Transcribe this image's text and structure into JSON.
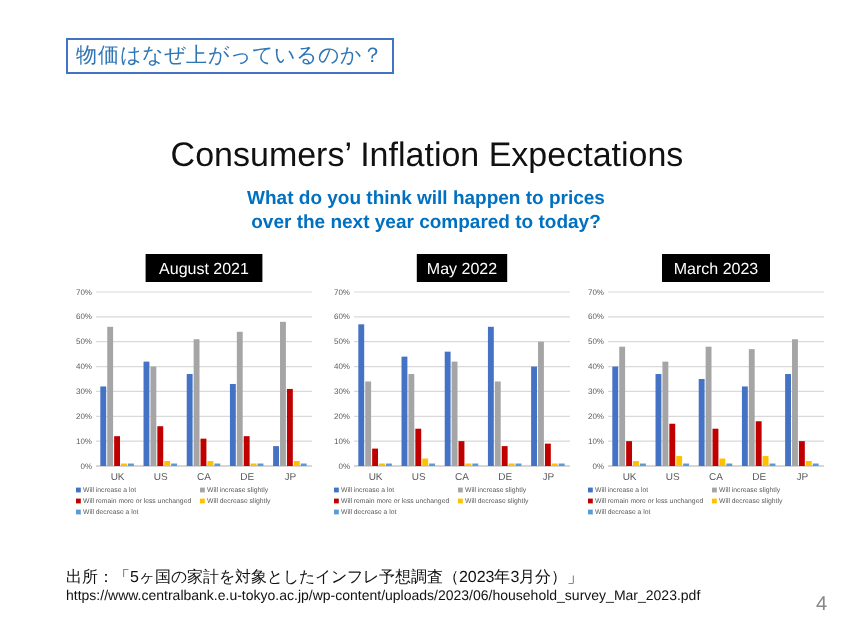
{
  "chart_data": [
    {
      "type": "bar",
      "title": "August 2021",
      "categories": [
        "UK",
        "US",
        "CA",
        "DE",
        "JP"
      ],
      "series": [
        {
          "name": "Will increase a lot",
          "color": "#4472c4",
          "values": [
            32,
            42,
            37,
            33,
            8
          ]
        },
        {
          "name": "Will increase slightly",
          "color": "#a5a5a5",
          "values": [
            56,
            40,
            51,
            54,
            58
          ]
        },
        {
          "name": "Will remain more or less unchanged",
          "color": "#c00000",
          "values": [
            12,
            16,
            11,
            12,
            31
          ]
        },
        {
          "name": "Will decrease slightly",
          "color": "#ffc000",
          "values": [
            1,
            2,
            2,
            1,
            2
          ]
        },
        {
          "name": "Will decrease a lot",
          "color": "#5b9bd5",
          "values": [
            1,
            1,
            1,
            1,
            1
          ]
        }
      ],
      "ylim": [
        0,
        70
      ],
      "yticks": [
        {
          "value": 0,
          "label": "0%"
        },
        {
          "value": 10,
          "label": "10%"
        },
        {
          "value": 20,
          "label": "20%"
        },
        {
          "value": 30,
          "label": "30%"
        },
        {
          "value": 40,
          "label": "40%"
        },
        {
          "value": 50,
          "label": "50%"
        },
        {
          "value": 60,
          "label": "60%"
        },
        {
          "value": 70,
          "label": "70%"
        }
      ],
      "grid": "y",
      "legend": "bottom",
      "annotations": [
        "物価はなぜ上がっているのか？",
        "Consumers’ Inflation Expectations",
        "What do you think will happen to prices over the next year compared to today?",
        "出所：「5ヶ国の家計を対象としたインフレ予想調査（2023年3月分）」",
        "https://www.centralbank.e.u-tokyo.ac.jp/wp-content/uploads/2023/06/household_survey_Mar_2023.pdf",
        "4"
      ]
    },
    {
      "type": "bar",
      "title": "May 2022",
      "categories": [
        "UK",
        "US",
        "CA",
        "DE",
        "JP"
      ],
      "series": [
        {
          "name": "Will increase a lot",
          "color": "#4472c4",
          "values": [
            57,
            44,
            46,
            56,
            40
          ]
        },
        {
          "name": "Will increase slightly",
          "color": "#a5a5a5",
          "values": [
            34,
            37,
            42,
            34,
            50
          ]
        },
        {
          "name": "Will remain more or less unchanged",
          "color": "#c00000",
          "values": [
            7,
            15,
            10,
            8,
            9
          ]
        },
        {
          "name": "Will decrease slightly",
          "color": "#ffc000",
          "values": [
            1,
            3,
            1,
            1,
            1
          ]
        },
        {
          "name": "Will decrease a lot",
          "color": "#5b9bd5",
          "values": [
            1,
            1,
            1,
            1,
            1
          ]
        }
      ],
      "ylim": [
        0,
        70
      ],
      "yticks": [
        {
          "value": 0,
          "label": "0%"
        },
        {
          "value": 10,
          "label": "10%"
        },
        {
          "value": 20,
          "label": "20%"
        },
        {
          "value": 30,
          "label": "30%"
        },
        {
          "value": 40,
          "label": "40%"
        },
        {
          "value": 50,
          "label": "50%"
        },
        {
          "value": 60,
          "label": "60%"
        },
        {
          "value": 70,
          "label": "70%"
        }
      ],
      "grid": "y",
      "legend": "bottom"
    },
    {
      "type": "bar",
      "title": "March 2023",
      "categories": [
        "UK",
        "US",
        "CA",
        "DE",
        "JP"
      ],
      "series": [
        {
          "name": "Will increase a lot",
          "color": "#4472c4",
          "values": [
            40,
            37,
            35,
            32,
            37
          ]
        },
        {
          "name": "Will increase slightly",
          "color": "#a5a5a5",
          "values": [
            48,
            42,
            48,
            47,
            51
          ]
        },
        {
          "name": "Will remain more or less unchanged",
          "color": "#c00000",
          "values": [
            10,
            17,
            15,
            18,
            10
          ]
        },
        {
          "name": "Will decrease slightly",
          "color": "#ffc000",
          "values": [
            2,
            4,
            3,
            4,
            2
          ]
        },
        {
          "name": "Will decrease a lot",
          "color": "#5b9bd5",
          "values": [
            1,
            1,
            1,
            1,
            1
          ]
        }
      ],
      "ylim": [
        0,
        70
      ],
      "yticks": [
        {
          "value": 0,
          "label": "0%"
        },
        {
          "value": 10,
          "label": "10%"
        },
        {
          "value": 20,
          "label": "20%"
        },
        {
          "value": 30,
          "label": "30%"
        },
        {
          "value": 40,
          "label": "40%"
        },
        {
          "value": 50,
          "label": "50%"
        },
        {
          "value": 60,
          "label": "60%"
        },
        {
          "value": 70,
          "label": "70%"
        }
      ],
      "grid": "y",
      "legend": "bottom"
    }
  ]
}
